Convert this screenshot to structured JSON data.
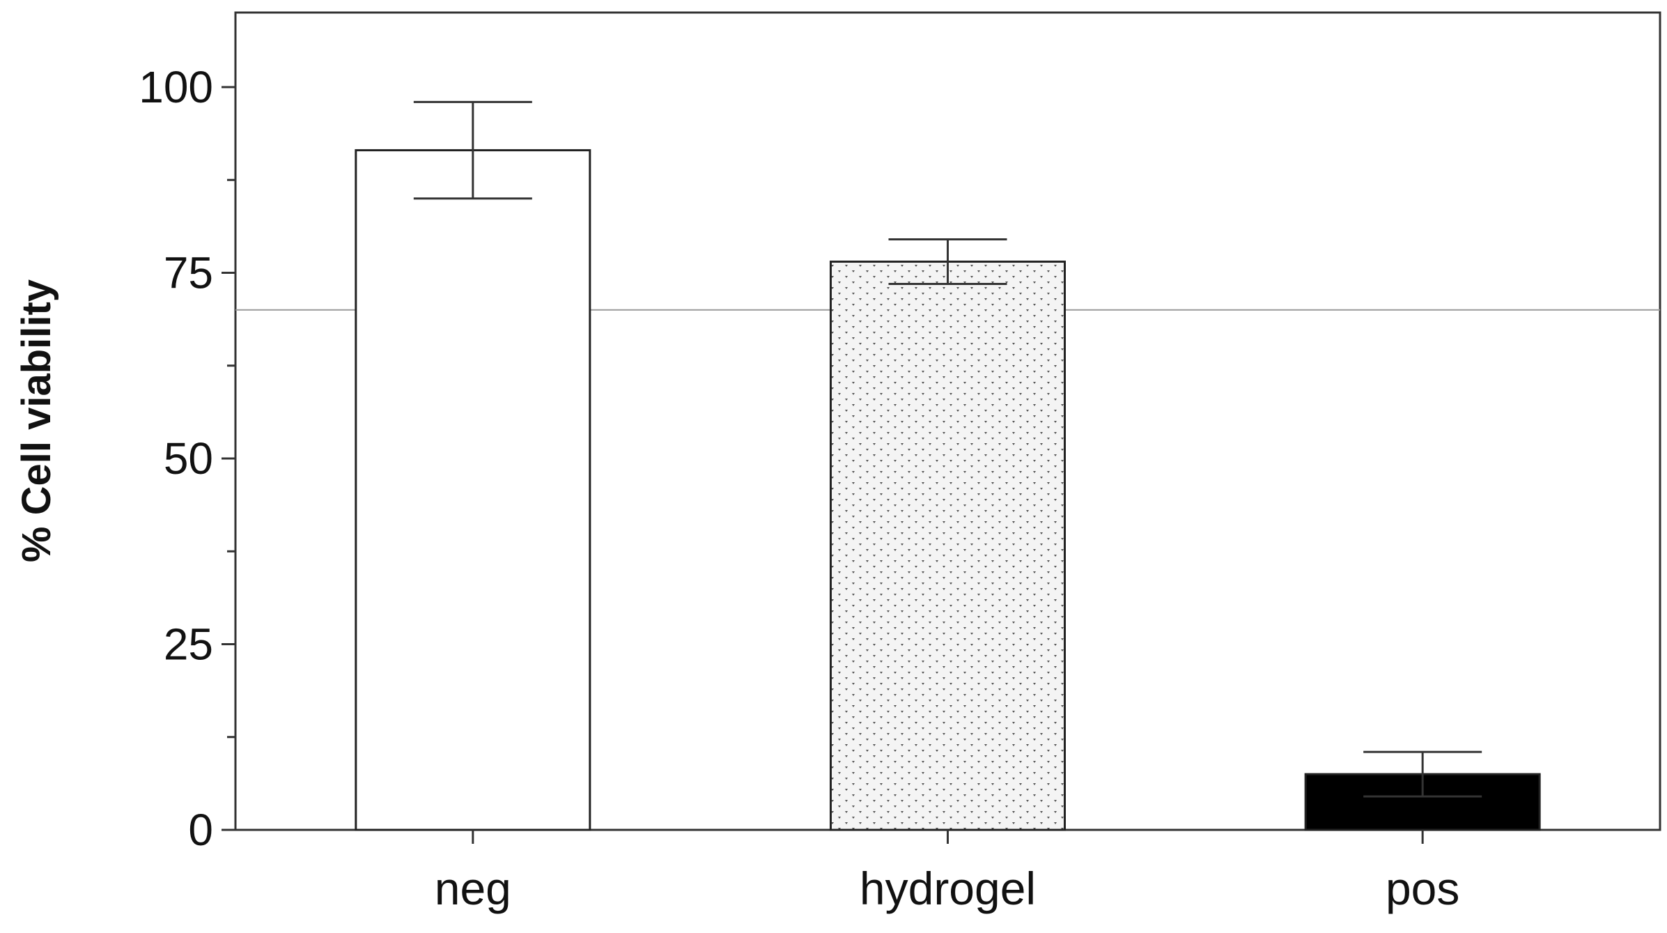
{
  "chart_data": {
    "type": "bar",
    "categories": [
      "neg",
      "hydrogel",
      "pos"
    ],
    "values": [
      91.5,
      76.5,
      7.5
    ],
    "error": [
      6.5,
      3.0,
      3.0
    ],
    "fills": [
      "#ffffff",
      "pattern-dots",
      "#000000"
    ],
    "ylabel": "% Cell viability",
    "xlabel": "",
    "ylim": [
      0,
      110
    ],
    "yticks": [
      0,
      25,
      50,
      75,
      100
    ],
    "yminor_step": 12.5,
    "reference_line": 70,
    "grid": false
  }
}
